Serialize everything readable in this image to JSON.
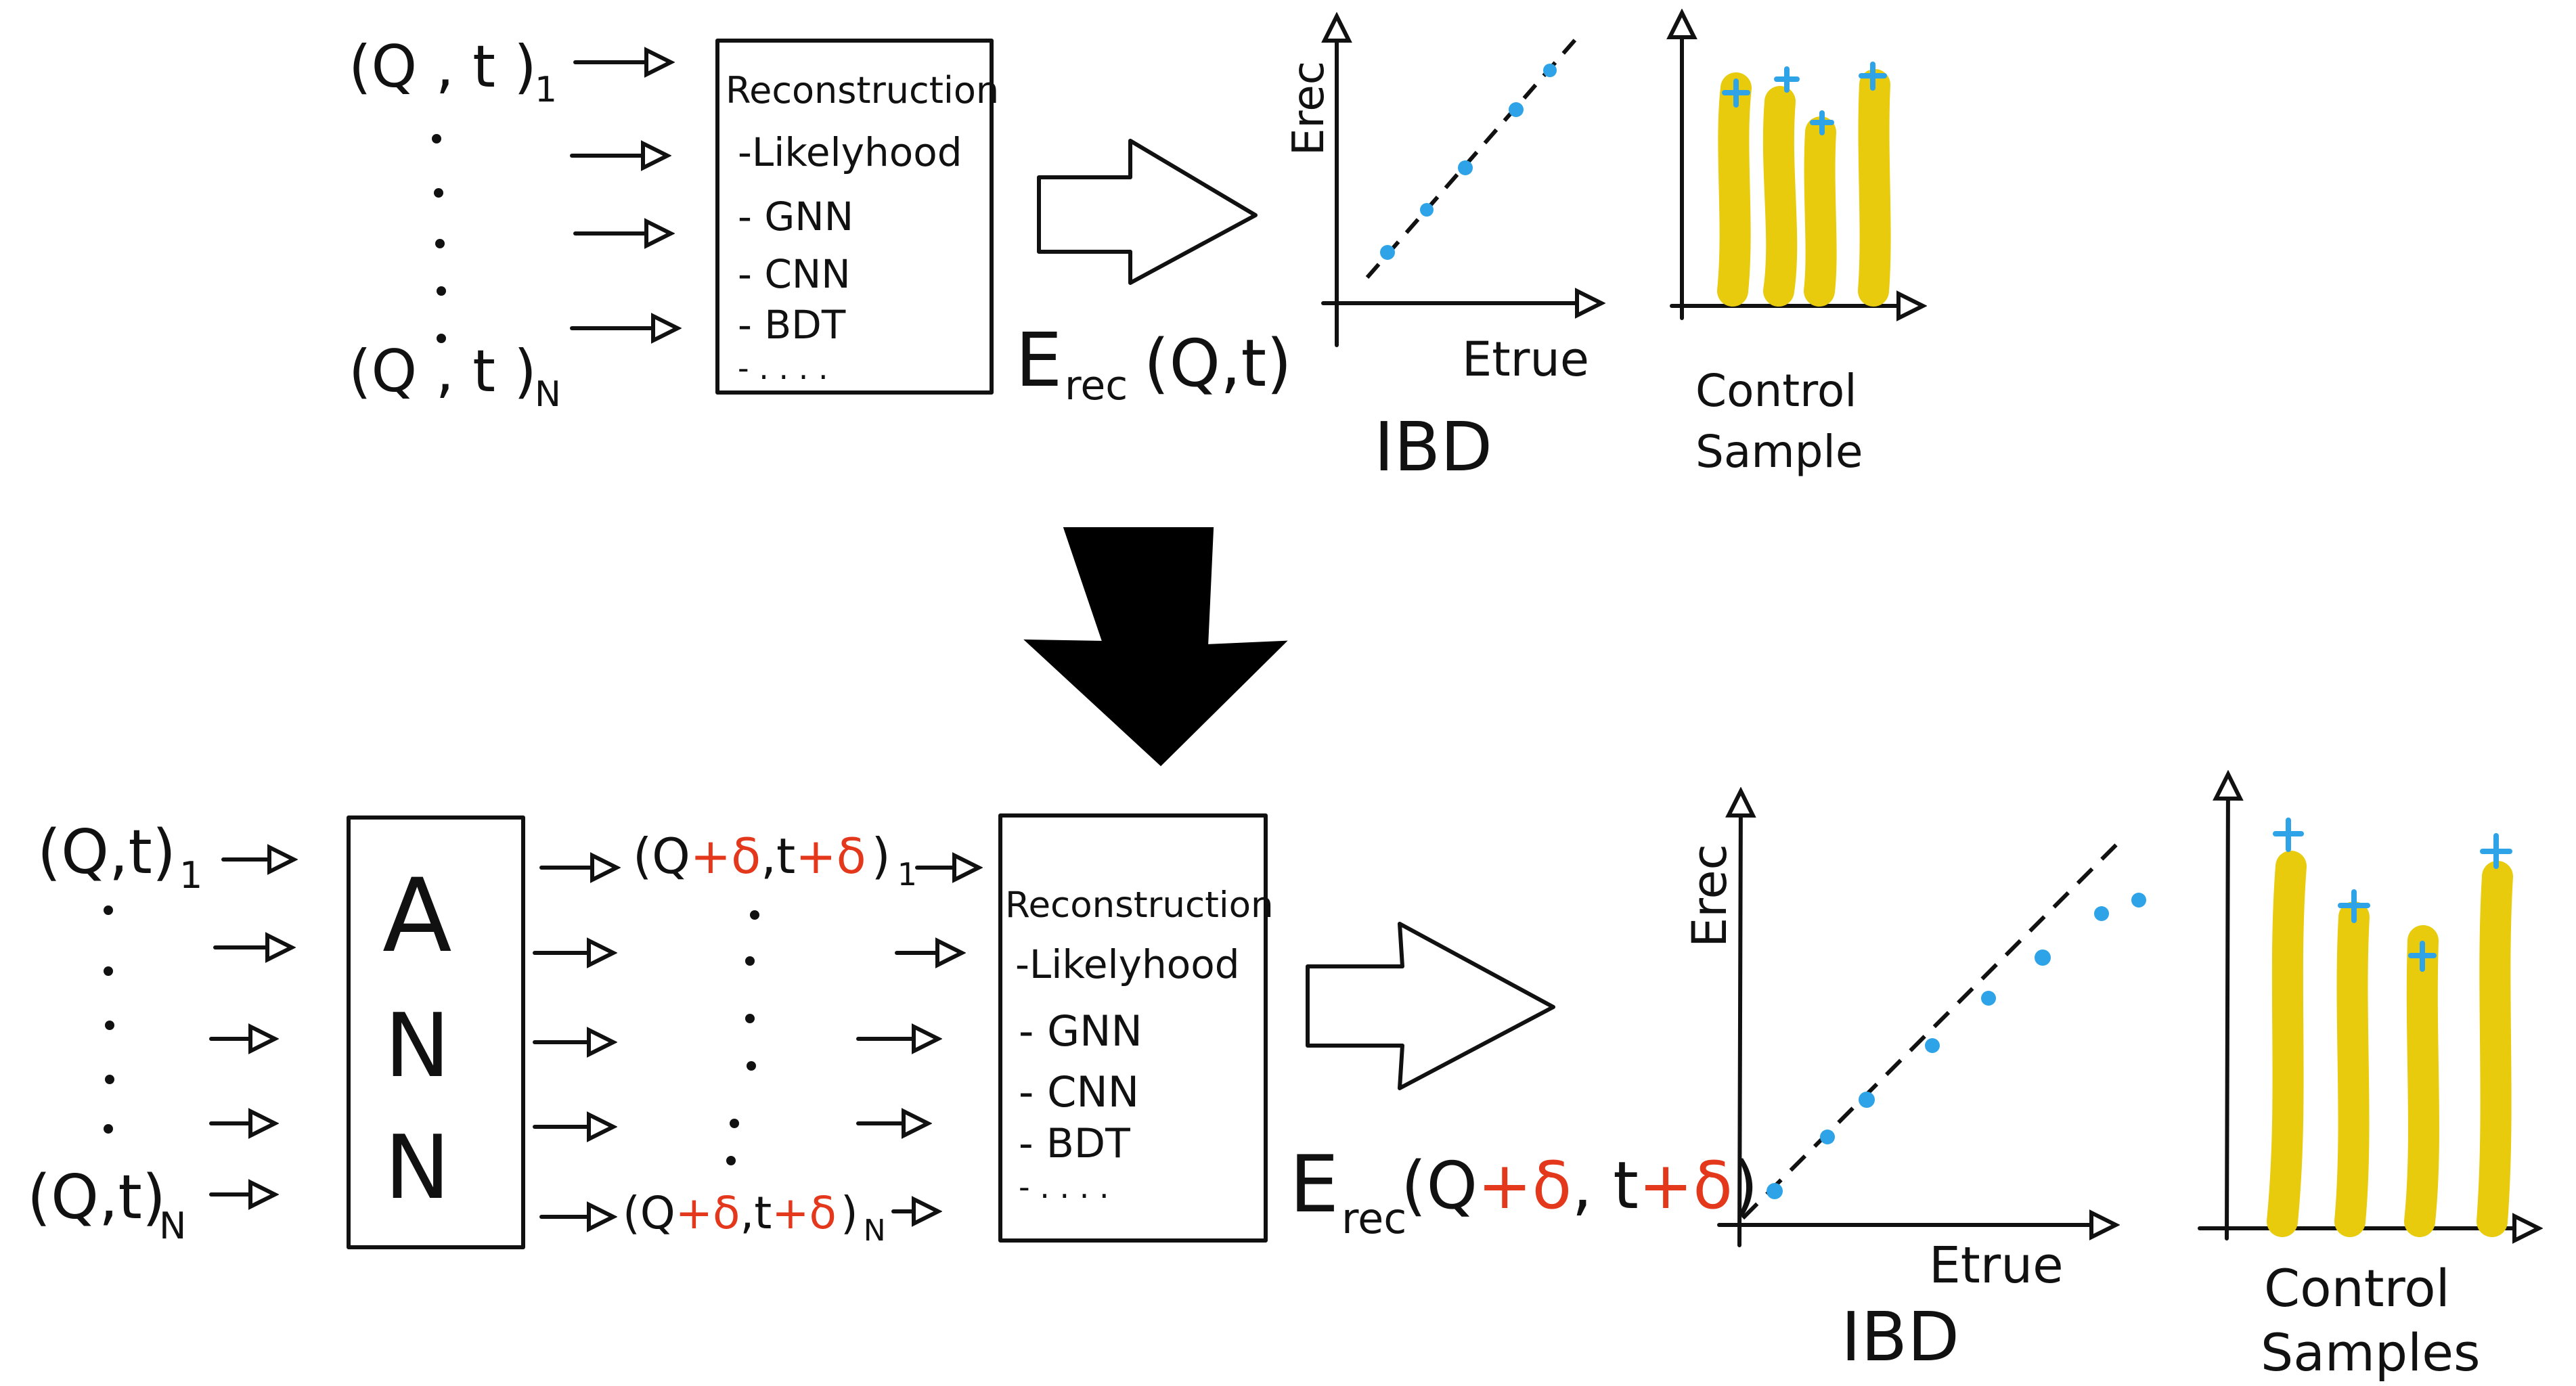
{
  "top": {
    "input_first": "(Q , t )",
    "input_first_sub": "1",
    "input_last": "(Q , t )",
    "input_last_sub": "N",
    "reco_box": {
      "title": "Reconstruction",
      "items": [
        "-Likelyhood",
        "- GNN",
        "- CNN",
        "- BDT",
        "- . . . ."
      ]
    },
    "erec_main": "E",
    "erec_sub": "rec",
    "erec_args": "(Q,t)",
    "plot_ylabel": "Erec",
    "plot_xlabel": "Etrue",
    "plot_caption": "IBD",
    "control_caption_1": "Control",
    "control_caption_2": "Sample"
  },
  "bottom": {
    "input_first": "(Q,t)",
    "input_first_sub": "1",
    "input_last": "(Q,t)",
    "input_last_sub": "N",
    "ann_letters": [
      "A",
      "N",
      "N"
    ],
    "perturbed_first": {
      "open": "(Q",
      "d1": "+δ",
      "mid": ",t",
      "d2": "+δ",
      "close": ")",
      "sub": "1"
    },
    "perturbed_last": {
      "open": "(Q",
      "d1": "+δ",
      "mid": ",t",
      "d2": "+δ",
      "close": ")",
      "sub": "N"
    },
    "reco_box": {
      "title": "Reconstruction",
      "items": [
        "-Likelyhood",
        "- GNN",
        "- CNN",
        "- BDT",
        "- . . . ."
      ]
    },
    "erec_main": "E",
    "erec_sub": "rec",
    "erec_open": "(Q",
    "erec_d1": "+δ",
    "erec_mid": ", t",
    "erec_d2": "+δ",
    "erec_close": ")",
    "plot_ylabel": "Erec",
    "plot_xlabel": "Etrue",
    "plot_caption": "IBD",
    "control_caption_1": "Control",
    "control_caption_2": "Samples"
  },
  "colors": {
    "ink": "#111111",
    "delta": "#e4381d",
    "points": "#2ea3e8",
    "bars": "#e8cb0c"
  }
}
